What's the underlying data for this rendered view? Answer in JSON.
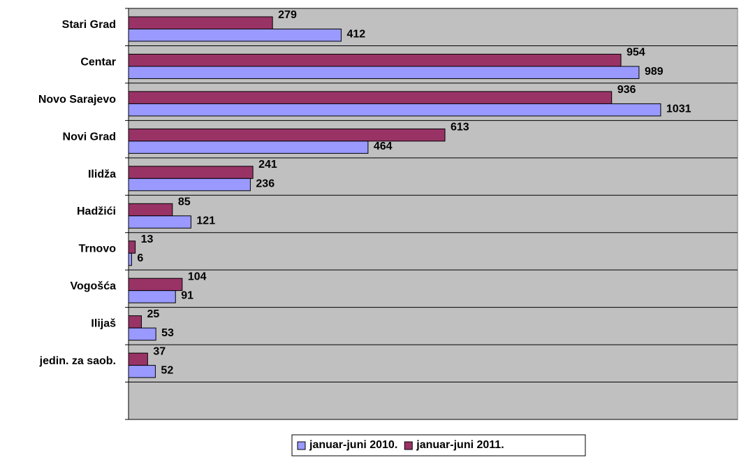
{
  "chart_data": {
    "type": "hbar",
    "categories": [
      "Stari Grad",
      "Centar",
      "Novo Sarajevo",
      "Novi Grad",
      "Ilidža",
      "Hadžići",
      "Trnovo",
      "Vogošća",
      "Ilijaš",
      "jedin. za saob.",
      null
    ],
    "series": [
      {
        "name": "januar-juni 2010.",
        "color": "#9999ff",
        "values": [
          412,
          989,
          1031,
          464,
          236,
          121,
          6,
          91,
          53,
          52,
          null
        ]
      },
      {
        "name": "januar-juni 2011.",
        "color": "#993366",
        "values": [
          279,
          954,
          936,
          613,
          241,
          85,
          13,
          104,
          25,
          37,
          null
        ]
      }
    ],
    "xlim": [
      0,
      1180
    ],
    "grid": true,
    "legend": "bottom"
  }
}
